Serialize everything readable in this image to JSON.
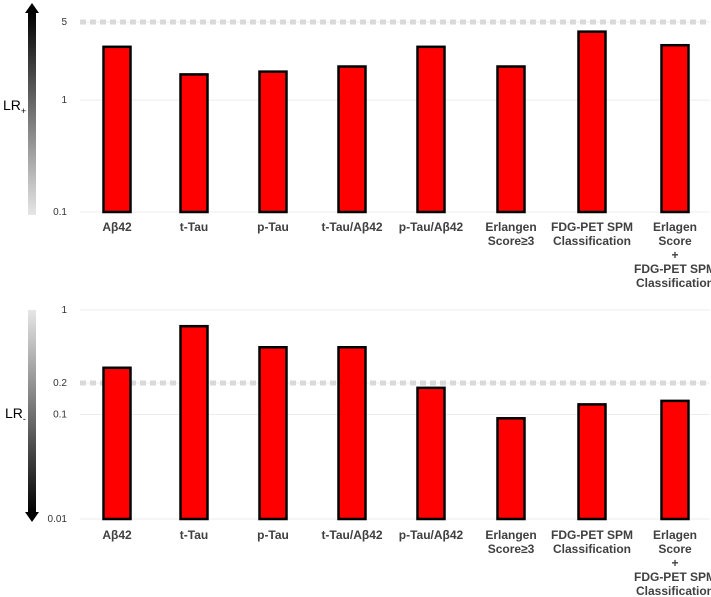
{
  "chart_data": [
    {
      "type": "bar",
      "ylabel": "LR",
      "ylabel_subscript": "+",
      "scale": "log",
      "ylim": [
        0.1,
        5
      ],
      "yticks": [
        "5",
        "1",
        "0.1"
      ],
      "ytick_values": [
        5,
        1,
        0.1
      ],
      "reference_line": 5,
      "gradient_arrow": "dark-to-light downward",
      "categories": [
        [
          "Aβ42"
        ],
        [
          "t-Tau"
        ],
        [
          "p-Tau"
        ],
        [
          "t-Tau/Aβ42"
        ],
        [
          "p-Tau/Aβ42"
        ],
        [
          "Erlangen",
          "Score≥3"
        ],
        [
          "FDG-PET SPM",
          "Classification"
        ],
        [
          "Erlagen",
          "Score",
          "+",
          "FDG-PET SPM",
          "Classification"
        ]
      ],
      "values": [
        3.0,
        1.7,
        1.8,
        2.0,
        3.0,
        2.0,
        4.1,
        3.1
      ],
      "bar_color": "#ff0000",
      "bar_outline": "#000000",
      "grid": true
    },
    {
      "type": "bar",
      "ylabel": "LR",
      "ylabel_subscript": "-",
      "scale": "log",
      "ylim": [
        0.01,
        1
      ],
      "yticks": [
        "1",
        "0.2",
        "0.1",
        "0.01"
      ],
      "ytick_values": [
        1,
        0.2,
        0.1,
        0.01
      ],
      "reference_line": 0.2,
      "gradient_arrow": "light-to-dark downward",
      "categories": [
        [
          "Aβ42"
        ],
        [
          "t-Tau"
        ],
        [
          "p-Tau"
        ],
        [
          "t-Tau/Aβ42"
        ],
        [
          "p-Tau/Aβ42"
        ],
        [
          "Erlangen",
          "Score≥3"
        ],
        [
          "FDG-PET SPM",
          "Classification"
        ],
        [
          "Erlagen",
          "Score",
          "+",
          "FDG-PET SPM",
          "Classification"
        ]
      ],
      "values": [
        0.28,
        0.7,
        0.44,
        0.44,
        0.18,
        0.092,
        0.125,
        0.135
      ],
      "bar_color": "#ff0000",
      "bar_outline": "#000000",
      "grid": true
    }
  ]
}
